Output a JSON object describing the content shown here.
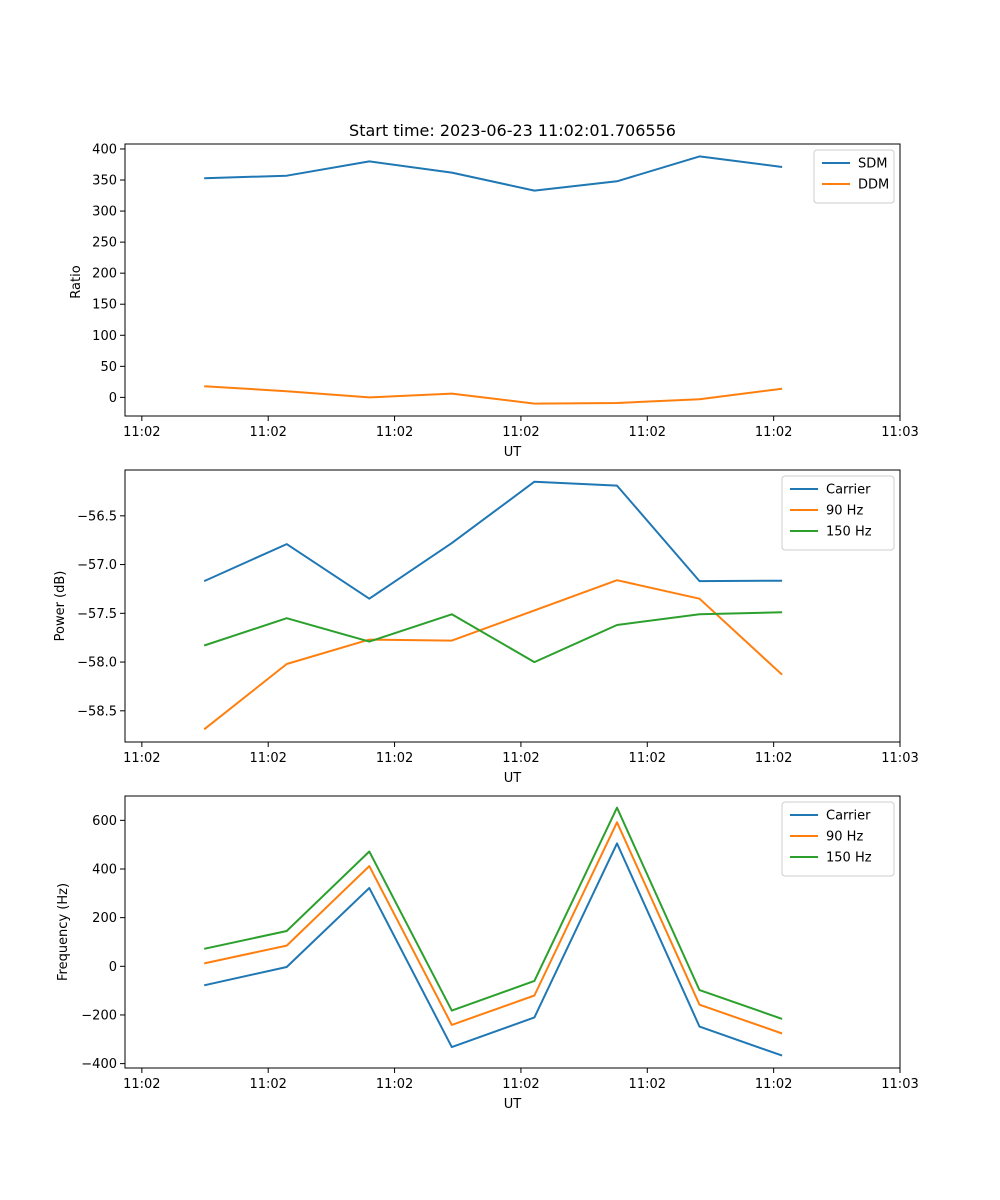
{
  "chart_data": [
    {
      "type": "line",
      "title": "Start time: 2023-06-23 11:02:01.706556",
      "xlabel": "UT",
      "ylabel": "Ratio",
      "xlim": [
        0.0,
        4.6
      ],
      "x_tick_values": [
        0.1,
        0.85,
        1.6,
        2.35,
        3.1,
        3.85,
        4.6
      ],
      "x_tick_labels": [
        "11:02",
        "11:02",
        "11:02",
        "11:02",
        "11:02",
        "11:02",
        "11:03"
      ],
      "ylim": [
        -30,
        408
      ],
      "y_ticks": [
        0,
        50,
        100,
        150,
        200,
        250,
        300,
        350,
        400
      ],
      "x": [
        0.47,
        0.96,
        1.45,
        1.94,
        2.43,
        2.92,
        3.41,
        3.9
      ],
      "series": [
        {
          "name": "SDM",
          "color": "#1f77b4",
          "values": [
            353,
            357,
            380,
            362,
            333,
            348,
            388,
            371
          ]
        },
        {
          "name": "DDM",
          "color": "#ff7f0e",
          "values": [
            18,
            10,
            0,
            6,
            -10,
            -9,
            -3,
            14
          ]
        }
      ],
      "legend": "upper right",
      "grid": false
    },
    {
      "type": "line",
      "title": "",
      "xlabel": "UT",
      "ylabel": "Power (dB)",
      "xlim": [
        0.0,
        4.6
      ],
      "x_tick_values": [
        0.1,
        0.85,
        1.6,
        2.35,
        3.1,
        3.85,
        4.6
      ],
      "x_tick_labels": [
        "11:02",
        "11:02",
        "11:02",
        "11:02",
        "11:02",
        "11:02",
        "11:03"
      ],
      "ylim": [
        -58.82,
        -56.03
      ],
      "y_ticks": [
        -58.5,
        -58.0,
        -57.5,
        -57.0,
        -56.5
      ],
      "y_tick_labels": [
        "−58.5",
        "−58.0",
        "−57.5",
        "−57.0",
        "−56.5"
      ],
      "x": [
        0.47,
        0.96,
        1.45,
        1.94,
        2.43,
        2.92,
        3.41,
        3.9
      ],
      "series": [
        {
          "name": "Carrier",
          "color": "#1f77b4",
          "values": [
            -57.17,
            -56.79,
            -57.35,
            -56.78,
            -56.15,
            -56.19,
            -57.17,
            -57.165
          ]
        },
        {
          "name": "90 Hz",
          "color": "#ff7f0e",
          "values": [
            -58.69,
            -58.02,
            -57.77,
            -57.78,
            -57.47,
            -57.16,
            -57.35,
            -58.13
          ]
        },
        {
          "name": "150 Hz",
          "color": "#2ca02c",
          "values": [
            -57.83,
            -57.55,
            -57.79,
            -57.51,
            -58.0,
            -57.62,
            -57.51,
            -57.49
          ]
        }
      ],
      "legend": "upper right",
      "grid": false
    },
    {
      "type": "line",
      "title": "",
      "xlabel": "UT",
      "ylabel": "Frequency (Hz)",
      "xlim": [
        0.0,
        4.6
      ],
      "x_tick_values": [
        0.1,
        0.85,
        1.6,
        2.35,
        3.1,
        3.85,
        4.6
      ],
      "x_tick_labels": [
        "11:02",
        "11:02",
        "11:02",
        "11:02",
        "11:02",
        "11:02",
        "11:03"
      ],
      "ylim": [
        -418,
        700
      ],
      "y_ticks": [
        -400,
        -200,
        0,
        200,
        400,
        600
      ],
      "y_tick_labels": [
        "−400",
        "−200",
        "0",
        "200",
        "400",
        "600"
      ],
      "x": [
        0.47,
        0.96,
        1.45,
        1.94,
        2.43,
        2.92,
        3.41,
        3.9
      ],
      "series": [
        {
          "name": "Carrier",
          "color": "#1f77b4",
          "values": [
            -78,
            -3,
            322,
            -332,
            -210,
            505,
            -248,
            -367
          ]
        },
        {
          "name": "90 Hz",
          "color": "#ff7f0e",
          "values": [
            12,
            85,
            412,
            -241,
            -120,
            592,
            -158,
            -276
          ]
        },
        {
          "name": "150 Hz",
          "color": "#2ca02c",
          "values": [
            72,
            145,
            472,
            -182,
            -60,
            652,
            -98,
            -216
          ]
        }
      ],
      "legend": "upper right",
      "grid": false
    }
  ]
}
